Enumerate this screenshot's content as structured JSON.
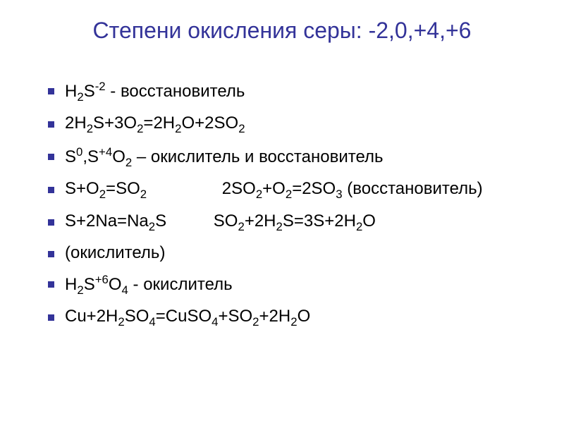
{
  "title": "Степени окисления серы: -2,0,+4,+6",
  "title_color": "#333399",
  "title_fontsize": 32,
  "bullet_color": "#333399",
  "bullet_size": 9,
  "text_color": "#000000",
  "text_fontsize": 24,
  "background_color": "#ffffff",
  "items": [
    {
      "html": "H<sub>2</sub>S<sup>-2</sup> - восстановитель"
    },
    {
      "html": "2H<sub>2</sub>S+3O<sub>2</sub>=2H<sub>2</sub>O+2SO<sub>2</sub>"
    },
    {
      "html": "S<sup>0</sup>,S<sup>+4</sup>O<sub>2</sub> – окислитель и восстановитель"
    },
    {
      "html": "S+O<sub>2</sub>=SO<sub>2</sub>&nbsp;&nbsp;&nbsp;&nbsp;&nbsp;&nbsp;&nbsp;&nbsp;&nbsp;&nbsp;&nbsp;&nbsp;&nbsp;&nbsp;&nbsp;&nbsp;2SO<sub>2</sub>+O<sub>2</sub>=2SO<sub>3</sub> (восстановитель)"
    },
    {
      "html": "S+2Na=Na<sub>2</sub>S&nbsp;&nbsp;&nbsp;&nbsp;&nbsp;&nbsp;&nbsp;&nbsp;&nbsp;&nbsp;SO<sub>2</sub>+2H<sub>2</sub>S=3S+2H<sub>2</sub>O"
    },
    {
      "html": "(окислитель)"
    },
    {
      "html": "H<sub>2</sub>S<sup>+6</sup>O<sub>4</sub> - окислитель"
    },
    {
      "html": "Cu+2H<sub>2</sub>SO<sub>4</sub>=CuSO<sub>4</sub>+SO<sub>2</sub>+2H<sub>2</sub>O"
    }
  ]
}
